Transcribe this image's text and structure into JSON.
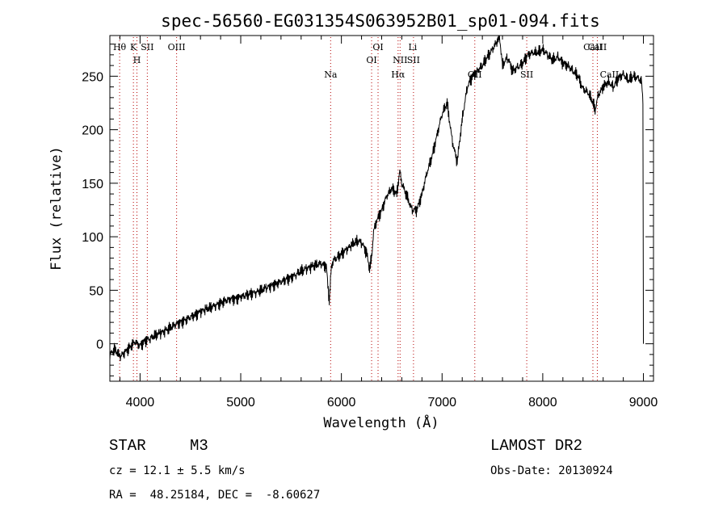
{
  "chart_data": {
    "type": "line",
    "title": "spec-56560-EG031354S063952B01_sp01-094.fits",
    "xlabel": "Wavelength (Å)",
    "ylabel": "Flux (relative)",
    "xlim": [
      3700,
      9100
    ],
    "ylim": [
      -35,
      288
    ],
    "xticks": [
      4000,
      5000,
      6000,
      7000,
      8000,
      9000
    ],
    "yticks": [
      0,
      50,
      100,
      150,
      200,
      250
    ],
    "series": [
      {
        "name": "spectrum",
        "x": [
          3700,
          3750,
          3800,
          3850,
          3900,
          3950,
          4000,
          4050,
          4100,
          4150,
          4200,
          4250,
          4300,
          4350,
          4400,
          4450,
          4500,
          4550,
          4600,
          4650,
          4700,
          4750,
          4800,
          4850,
          4900,
          4950,
          5000,
          5050,
          5100,
          5150,
          5200,
          5250,
          5300,
          5350,
          5400,
          5450,
          5500,
          5550,
          5600,
          5650,
          5700,
          5750,
          5800,
          5850,
          5880,
          5900,
          5920,
          5950,
          6000,
          6050,
          6100,
          6150,
          6200,
          6250,
          6280,
          6300,
          6320,
          6350,
          6400,
          6450,
          6500,
          6550,
          6580,
          6600,
          6650,
          6700,
          6750,
          6800,
          6850,
          6900,
          6950,
          7000,
          7050,
          7100,
          7150,
          7200,
          7250,
          7300,
          7350,
          7400,
          7450,
          7500,
          7550,
          7570,
          7600,
          7650,
          7700,
          7750,
          7800,
          7850,
          7900,
          7950,
          8000,
          8050,
          8100,
          8150,
          8200,
          8250,
          8300,
          8350,
          8400,
          8450,
          8500,
          8520,
          8550,
          8600,
          8650,
          8700,
          8750,
          8800,
          8850,
          8900,
          8950,
          8980,
          8995,
          9000
        ],
        "y": [
          -10,
          -5,
          -12,
          -8,
          -3,
          2,
          -2,
          3,
          5,
          8,
          10,
          12,
          15,
          18,
          20,
          22,
          25,
          27,
          30,
          32,
          34,
          36,
          38,
          40,
          42,
          42,
          44,
          45,
          47,
          48,
          50,
          52,
          54,
          56,
          58,
          60,
          62,
          65,
          68,
          70,
          72,
          74,
          75,
          72,
          40,
          72,
          78,
          80,
          84,
          88,
          92,
          96,
          95,
          85,
          70,
          80,
          105,
          115,
          125,
          138,
          145,
          140,
          162,
          150,
          138,
          125,
          125,
          140,
          160,
          175,
          195,
          215,
          225,
          190,
          170,
          210,
          240,
          250,
          255,
          260,
          268,
          275,
          283,
          288,
          260,
          268,
          255,
          258,
          262,
          270,
          272,
          272,
          275,
          270,
          265,
          268,
          262,
          260,
          255,
          250,
          238,
          235,
          225,
          218,
          232,
          240,
          245,
          240,
          248,
          252,
          246,
          250,
          248,
          245,
          230,
          0
        ]
      }
    ],
    "lines_top": [
      {
        "label": "Hθ",
        "x": 3797
      },
      {
        "label": "K",
        "x": 3934
      },
      {
        "label": "SII",
        "x": 4072
      },
      {
        "label": "OIII",
        "x": 4363
      },
      {
        "label": "OI",
        "x": 6364
      },
      {
        "label": "Li",
        "x": 6708
      },
      {
        "label": "CaII",
        "x": 8498
      },
      {
        "label": "CaII",
        "x": 8542
      }
    ],
    "lines_mid": [
      {
        "label": "H",
        "x": 3969
      },
      {
        "label": "Na",
        "x": 5893
      },
      {
        "label": "OI",
        "x": 6300
      },
      {
        "label": "NII",
        "x": 6583
      },
      {
        "label": "SII",
        "x": 6716
      },
      {
        "label": "Hα",
        "x": 6563
      },
      {
        "label": "OII",
        "x": 7325
      },
      {
        "label": "SII",
        "x": 7841
      },
      {
        "label": "CaII",
        "x": 8662
      }
    ],
    "dotted_lines_x": [
      3797,
      3934,
      3969,
      4072,
      4363,
      5893,
      6300,
      6364,
      6563,
      6583,
      6716,
      7325,
      7841,
      8498,
      8542
    ]
  },
  "info": {
    "object_class": "STAR",
    "subclass": "M3",
    "survey": "LAMOST DR2",
    "redshift": "cz = 12.1 ± 5.5 km/s",
    "obs_date": "Obs-Date: 20130924",
    "coords": "RA =  48.25184, DEC =  -8.60627"
  }
}
